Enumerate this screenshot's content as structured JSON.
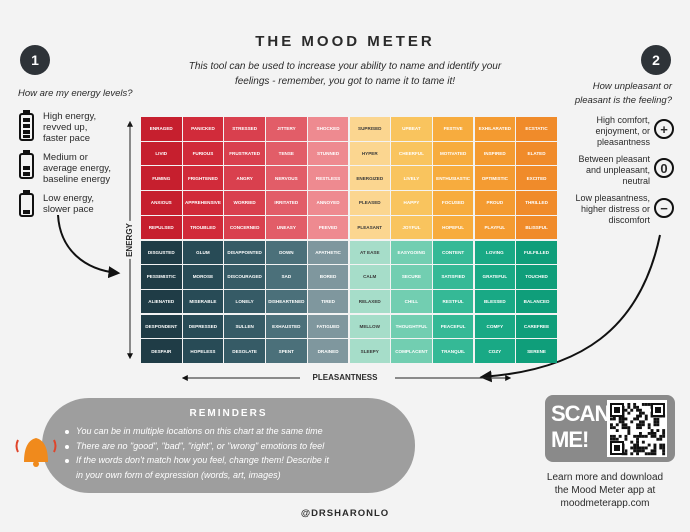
{
  "title": "THE MOOD METER",
  "subtitle": [
    "This tool can be used to increase your ability to name and identify your",
    "feelings - remember, you got to name it to tame it!"
  ],
  "energy_panel": {
    "number": "1",
    "question": "How are my energy levels?",
    "levels": [
      [
        "High energy,",
        "revved up,",
        "faster pace"
      ],
      [
        "Medium or",
        "average energy,",
        "baseline energy"
      ],
      [
        "Low energy,",
        "slower pace"
      ]
    ]
  },
  "pleasant_panel": {
    "number": "2",
    "question": [
      "How unpleasant or",
      "pleasant is the feeling?"
    ],
    "levels": [
      [
        "High comfort,",
        "enjoyment, or",
        "pleasantness"
      ],
      [
        "Between pleasant",
        "and unpleasant,",
        "neutral"
      ],
      [
        "Low pleasantness,",
        "higher distress or",
        "discomfort"
      ]
    ],
    "icons": [
      "+",
      "0",
      "−"
    ]
  },
  "grid": {
    "rows": [
      [
        "ENRAGED",
        "PANICKED",
        "STRESSED",
        "JITTERY",
        "SHOCKED",
        "SUPRISED",
        "UPBEAT",
        "FESTIVE",
        "EXHILARATED",
        "ECSTATIC"
      ],
      [
        "LIVID",
        "FURIOUS",
        "FRUSTRATED",
        "TENSE",
        "STUNNED",
        "HYPER",
        "CHEERFUL",
        "MOTIVATED",
        "INSPIRED",
        "ELATED"
      ],
      [
        "FUMING",
        "FRIGHTENED",
        "ANGRY",
        "NERVOUS",
        "RESTLESS",
        "ENERGIZED",
        "LIVELY",
        "ENTHUSIASTIC",
        "OPTIMISTIC",
        "EXCITED"
      ],
      [
        "ANXIOUS",
        "APPREHENSIVE",
        "WORRIED",
        "IRRITATED",
        "ANNOYED",
        "PLEASED",
        "HAPPY",
        "FOCUSED",
        "PROUD",
        "THRILLED"
      ],
      [
        "REPULSED",
        "TROUBLED",
        "CONCERNED",
        "UNEASY",
        "PEEVED",
        "PLEASANT",
        "JOYFUL",
        "HOPEFUL",
        "PLAYFUL",
        "BLISSFUL"
      ],
      [
        "DISGUSTED",
        "GLUM",
        "DISAPPOINTED",
        "DOWN",
        "APATHETIC",
        "AT EASE",
        "EASYGOING",
        "CONTENT",
        "LOVING",
        "FULFILLED"
      ],
      [
        "PESSIMISTIC",
        "MOROSE",
        "DISCOURAGED",
        "SAD",
        "BORED",
        "CALM",
        "SECURE",
        "SATISFIED",
        "GRATEFUL",
        "TOUCHED"
      ],
      [
        "ALIENATED",
        "MISERABLE",
        "LONELY",
        "DISHEARTENED",
        "TIRED",
        "RELAXED",
        "CHILL",
        "RESTFUL",
        "BLESSED",
        "BALANCED"
      ],
      [
        "DESPONDENT",
        "DEPRESSED",
        "SULLEN",
        "EXHAUSTED",
        "FATIGUED",
        "MELLOW",
        "THOUGHTFUL",
        "PEACEFUL",
        "COMFY",
        "CAREFREE"
      ],
      [
        "DESPAIR",
        "HOPELESS",
        "DESOLATE",
        "SPENT",
        "DRAINED",
        "SLEEPY",
        "COMPLACENT",
        "TRANQUIL",
        "COZY",
        "SERENE"
      ]
    ]
  },
  "y_axis_label": "ENERGY",
  "x_axis_label": "PLEASANTNESS",
  "reminders": {
    "title": "REMINDERS",
    "items": [
      [
        "You can be in multiple locations on this chart at the same time"
      ],
      [
        "There are no \"good\", \"bad\", \"right\", or \"wrong\" emotions to feel"
      ],
      [
        "If the words don't match how you feel, change them! Describe it",
        "in your own form of expression (words, art, images)"
      ]
    ]
  },
  "scan": [
    "SCAN",
    "ME!"
  ],
  "footer": [
    "Learn more and download",
    "the Mood Meter app at",
    "moodmeterapp.com"
  ],
  "handle": "@DRSHARONLO"
}
